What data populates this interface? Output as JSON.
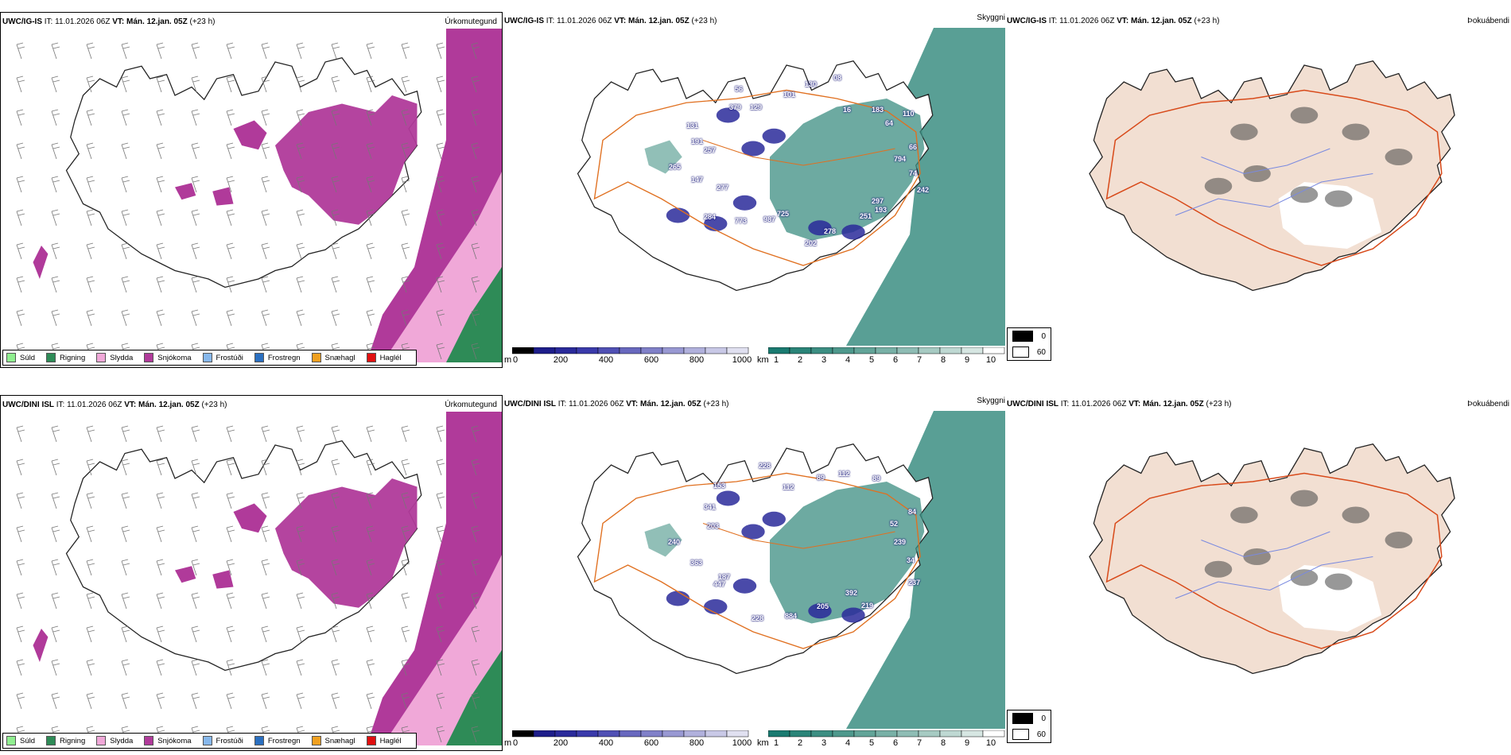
{
  "rows": [
    {
      "model": "UWC/IG-IS",
      "it_label": "IT:",
      "it_value": "11.01.2026 06Z",
      "vt_label": "VT:",
      "vt_value": "Mán. 12.jan. 05Z",
      "lead": "(+23 h)",
      "cloud_labels": [
        "794",
        "74",
        "242",
        "193",
        "297",
        "251",
        "278",
        "202",
        "725",
        "987",
        "773",
        "284",
        "277",
        "147",
        "265",
        "257",
        "191",
        "131",
        "379",
        "56",
        "129",
        "101",
        "130",
        "08",
        "16",
        "183",
        "110",
        "64",
        "66"
      ]
    },
    {
      "model": "UWC/DINI ISL",
      "it_label": "IT:",
      "it_value": "11.01.2026 06Z",
      "vt_label": "VT:",
      "vt_value": "Mán. 12.jan. 05Z",
      "lead": "(+23 h)",
      "cloud_labels": [
        "239",
        "34",
        "237",
        "219",
        "392",
        "205",
        "884",
        "228",
        "447",
        "187",
        "363",
        "240",
        "203",
        "341",
        "153",
        "228",
        "112",
        "89",
        "112",
        "89",
        "84",
        "52"
      ]
    }
  ],
  "panel_names": {
    "precip": "Úrkomutegund",
    "cloud": "Skyggni",
    "fog": "Þokuábendi"
  },
  "precip_legend": [
    {
      "label": "Súld",
      "color": "#90ee90"
    },
    {
      "label": "Rigning",
      "color": "#2e8b57"
    },
    {
      "label": "Slydda",
      "color": "#f0a8d8"
    },
    {
      "label": "Snjókoma",
      "color": "#b03a9a"
    },
    {
      "label": "Frostúði",
      "color": "#87b8ec"
    },
    {
      "label": "Frostregn",
      "color": "#2a6fc0"
    },
    {
      "label": "Snæhagl",
      "color": "#f0a020"
    },
    {
      "label": "Haglél",
      "color": "#e01010"
    }
  ],
  "cloudbase_bar": {
    "unit": "m",
    "ticks": [
      "0",
      "200",
      "400",
      "600",
      "800",
      "1000"
    ],
    "colors": [
      "#000000",
      "#1e1e8a",
      "#2a2a9a",
      "#3a3aaa",
      "#5050b4",
      "#6868be",
      "#8080c8",
      "#9898d2",
      "#b0b0dc",
      "#c8c8e6",
      "#e0e0f0"
    ]
  },
  "vis_bar": {
    "unit": "km",
    "ticks": [
      "1",
      "2",
      "3",
      "4",
      "5",
      "6",
      "7",
      "8",
      "9",
      "10"
    ],
    "colors": [
      "#1a7a70",
      "#2a8478",
      "#3c8e82",
      "#4e988c",
      "#62a498",
      "#78b0a6",
      "#8ebcb4",
      "#a6cac2",
      "#bed8d2",
      "#d6e6e2",
      "#ffffff"
    ]
  },
  "fog_legend": [
    {
      "value": "0",
      "color": "#000000"
    },
    {
      "value": "60",
      "color": "#ffffff"
    }
  ]
}
